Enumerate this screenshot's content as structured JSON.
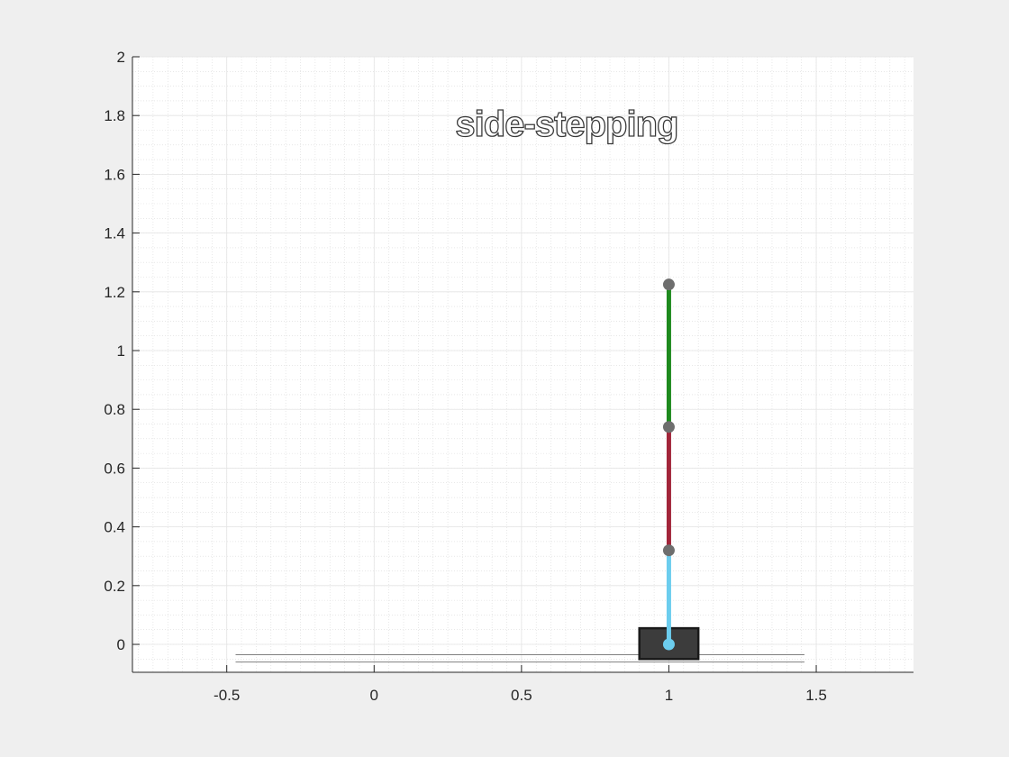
{
  "chart_data": {
    "type": "line",
    "title": "",
    "xlabel": "",
    "ylabel": "",
    "xlim": [
      -0.82,
      1.83
    ],
    "ylim": [
      -0.095,
      2.0
    ],
    "x_ticks": [
      -0.5,
      0,
      0.5,
      1,
      1.5
    ],
    "x_tick_labels": [
      "-0.5",
      "0",
      "0.5",
      "1",
      "1.5"
    ],
    "y_ticks": [
      0,
      0.2,
      0.4,
      0.6,
      0.8,
      1,
      1.2,
      1.4,
      1.6,
      1.8,
      2
    ],
    "y_tick_labels": [
      "0",
      "0.2",
      "0.4",
      "0.6",
      "0.8",
      "1",
      "1.2",
      "1.4",
      "1.6",
      "1.8",
      "2"
    ],
    "grid": true,
    "minor_grid": true,
    "annotation": {
      "text": "side-stepping",
      "x": 0.3,
      "y": 1.73
    },
    "ground": {
      "x": [
        -0.47,
        1.46
      ],
      "y_top": -0.035,
      "y_bottom": -0.06,
      "color": "#808080"
    },
    "cart": {
      "x": [
        0.9,
        1.1
      ],
      "y": [
        -0.05,
        0.055
      ],
      "color": "#3c3c3c"
    },
    "segments": [
      {
        "name": "link 1",
        "x": [
          1,
          1
        ],
        "y": [
          0,
          0.32
        ],
        "color": "#6ccdee"
      },
      {
        "name": "link 2",
        "x": [
          1,
          1
        ],
        "y": [
          0.32,
          0.74
        ],
        "color": "#a2253a"
      },
      {
        "name": "link 3",
        "x": [
          1,
          1
        ],
        "y": [
          0.74,
          1.225
        ],
        "color": "#1e8a1e"
      }
    ],
    "joints": [
      {
        "x": 1,
        "y": 0,
        "color": "#6ccdee"
      },
      {
        "x": 1,
        "y": 0.32,
        "color": "#6e6e6e"
      },
      {
        "x": 1,
        "y": 0.74,
        "color": "#6e6e6e"
      },
      {
        "x": 1,
        "y": 1.225,
        "color": "#6e6e6e"
      }
    ]
  }
}
